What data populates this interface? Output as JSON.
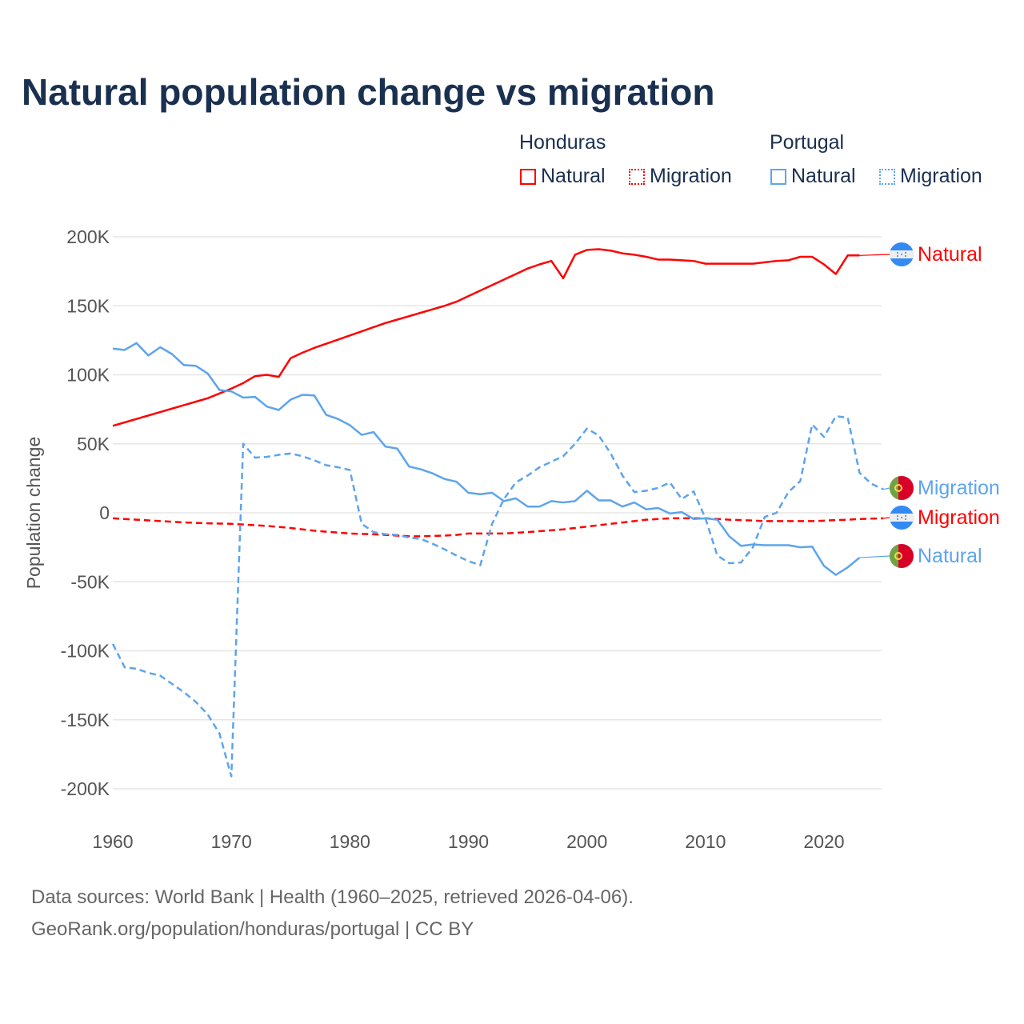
{
  "chart_data": {
    "type": "line",
    "title": "Natural population change vs migration",
    "ylabel": "Population change",
    "xlabel": "",
    "xlim": [
      1960,
      2025
    ],
    "ylim": [
      -200000,
      200000
    ],
    "xticks": [
      "1960",
      "1970",
      "1980",
      "1990",
      "2000",
      "2010",
      "2020"
    ],
    "yticks": [
      "200K",
      "150K",
      "100K",
      "50K",
      "0",
      "-50K",
      "-100K",
      "-150K",
      "-200K"
    ],
    "grid": true,
    "legend": {
      "placement": "top-right",
      "groups": [
        {
          "country": "Honduras",
          "items": [
            "Natural",
            "Migration"
          ]
        },
        {
          "country": "Portugal",
          "items": [
            "Natural",
            "Migration"
          ]
        }
      ]
    },
    "series": [
      {
        "name": "Honduras Natural",
        "label": "Natural",
        "color": "#ff0000",
        "dash": false,
        "start": 1960,
        "values": [
          63,
          65.5,
          68,
          70.5,
          73,
          75.5,
          78,
          80.5,
          83,
          86.5,
          90,
          94,
          99,
          100,
          98.5,
          112,
          116,
          119.5,
          122.5,
          125.5,
          128.5,
          131.5,
          134.5,
          137.5,
          140,
          142.5,
          145,
          147.5,
          150,
          153,
          157,
          161,
          165,
          169,
          173,
          177,
          180,
          182.5,
          170,
          187,
          190.5,
          191,
          190,
          188,
          187,
          185.5,
          183.5,
          183.5,
          183,
          182.5,
          180.5,
          180.5,
          180.5,
          180.5,
          180.5,
          181.5,
          182.5,
          183,
          185.5,
          185.5,
          180,
          173,
          186.5,
          186.5
        ]
      },
      {
        "name": "Honduras Migration",
        "label": "Migration",
        "color": "#ff0000",
        "dash": true,
        "start": 1960,
        "values": [
          -4,
          -4.5,
          -5,
          -5.5,
          -6,
          -6.5,
          -7,
          -7.3,
          -7.6,
          -7.8,
          -8,
          -8.5,
          -9,
          -9.5,
          -10.2,
          -11,
          -12,
          -13,
          -13.7,
          -14.3,
          -15,
          -15.3,
          -15.6,
          -16,
          -16.5,
          -17,
          -17,
          -16.8,
          -16.5,
          -16,
          -15,
          -15,
          -15,
          -15,
          -14.5,
          -14,
          -13.3,
          -12.7,
          -12,
          -11,
          -10,
          -9,
          -8,
          -7,
          -6,
          -5,
          -4.5,
          -4,
          -4,
          -4,
          -4,
          -4.5,
          -5,
          -5.3,
          -5.6,
          -6,
          -6,
          -6,
          -6,
          -6,
          -5.7,
          -5.3,
          -5,
          -4.5,
          -4.2,
          -4
        ]
      },
      {
        "name": "Portugal Natural",
        "label": "Natural",
        "color": "#5da4ec",
        "dash": false,
        "start": 1960,
        "values": [
          119,
          118,
          123,
          114,
          120,
          115,
          107,
          106.5,
          101,
          89,
          88,
          83.5,
          84,
          77,
          74.5,
          82,
          85.5,
          85,
          71,
          68,
          63.5,
          56.5,
          58.5,
          48,
          46.5,
          33.5,
          31.5,
          28.5,
          24.5,
          22.5,
          14.5,
          13.5,
          14.5,
          8.5,
          10.5,
          4.5,
          4.5,
          8.5,
          7.5,
          8.5,
          16,
          9,
          9,
          4.5,
          7.5,
          2.5,
          3.5,
          -0.5,
          0.5,
          -4.5,
          -4,
          -5,
          -17,
          -24,
          -23,
          -23.5,
          -23.5,
          -23.5,
          -25,
          -24.5,
          -38.5,
          -45,
          -39.5,
          -32.5
        ]
      },
      {
        "name": "Portugal Migration",
        "label": "Migration",
        "color": "#5da4ec",
        "dash": true,
        "start": 1960,
        "values": [
          -95,
          -112,
          -113,
          -116,
          -118,
          -124,
          -130,
          -137,
          -146,
          -160,
          -191,
          50,
          40,
          40.5,
          42,
          43,
          41,
          38,
          34.5,
          33,
          31,
          -8,
          -14,
          -15.5,
          -16,
          -18,
          -19,
          -22.5,
          -26.5,
          -31,
          -35,
          -38,
          -8,
          10,
          22,
          27,
          33,
          37,
          41,
          50,
          61,
          56,
          43,
          27,
          15,
          16,
          18,
          22,
          10,
          15.5,
          -4,
          -31,
          -36.5,
          -36,
          -25,
          -3,
          0,
          15,
          23,
          64,
          55,
          70,
          69,
          29,
          21,
          17
        ]
      }
    ],
    "units": "thousands"
  },
  "legend": {
    "honduras": "Honduras",
    "portugal": "Portugal",
    "natural": "Natural",
    "migration": "Migration"
  },
  "source_line1": "Data sources: World Bank | Health (1960–2025, retrieved 2026-04-06).",
  "source_line2": "GeoRank.org/population/honduras/portugal | CC BY"
}
